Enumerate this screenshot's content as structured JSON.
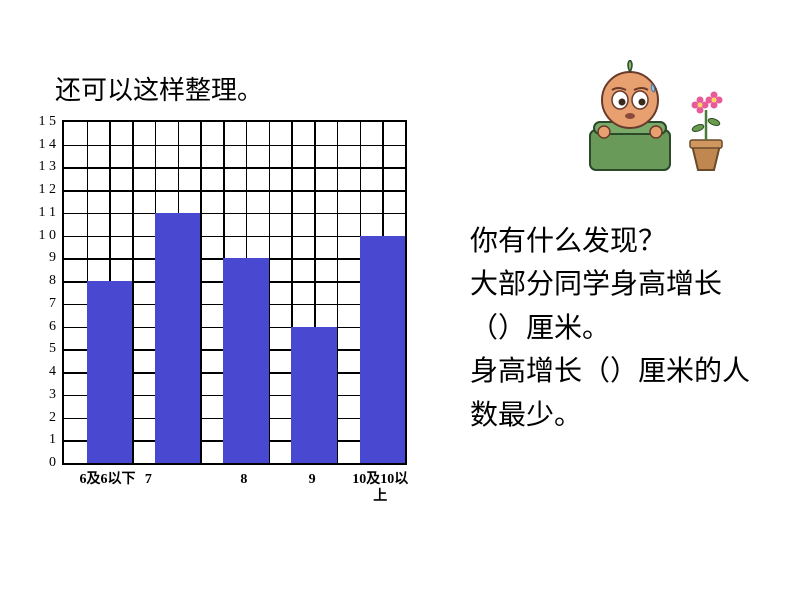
{
  "title": "还可以这样整理。",
  "chart": {
    "type": "bar",
    "y_max": 15,
    "y_min": 0,
    "y_tick_step": 1,
    "y_tick_labels": [
      "1 5",
      "1 4",
      "1 3",
      "1 2",
      "1 1",
      "1 0",
      "9",
      "8",
      "7",
      "6",
      "5",
      "4",
      "3",
      "2",
      "1",
      "0"
    ],
    "grid_cols": 15,
    "grid_rows": 15,
    "grid_color": "#000000",
    "background_color": "#ffffff",
    "bar_color": "#4848d0",
    "bar_width_cells": 2,
    "bars": [
      {
        "category": "6及6以下",
        "value": 8,
        "col_start": 1
      },
      {
        "category": "7",
        "value": 11,
        "col_start": 4
      },
      {
        "category": "8",
        "value": 9,
        "col_start": 7
      },
      {
        "category": "9",
        "value": 6,
        "col_start": 10
      },
      {
        "category": "10及10以上",
        "value": 10,
        "col_start": 13
      }
    ],
    "x_labels": [
      {
        "text": "6及6以下",
        "col": 2,
        "multiline": false
      },
      {
        "text": "7",
        "col": 3.8,
        "multiline": false
      },
      {
        "text": "8",
        "col": 8,
        "multiline": false
      },
      {
        "text": "9",
        "col": 11,
        "multiline": false
      },
      {
        "text": "10及10以上",
        "col": 14,
        "multiline": true
      }
    ],
    "title_fontsize": 26,
    "label_fontsize": 14
  },
  "right_text": {
    "line1": "你有什么发现？",
    "line2": "大部分同学身高增长（）厘米。",
    "line3": "身高增长（）厘米的人数最少。",
    "fontsize": 28
  },
  "character": {
    "description": "cartoon-onion-at-desk-with-flower",
    "head_color": "#e8a070",
    "desk_color": "#6a9a5a",
    "pot_color": "#c08850",
    "flower_color": "#e85a9a"
  }
}
